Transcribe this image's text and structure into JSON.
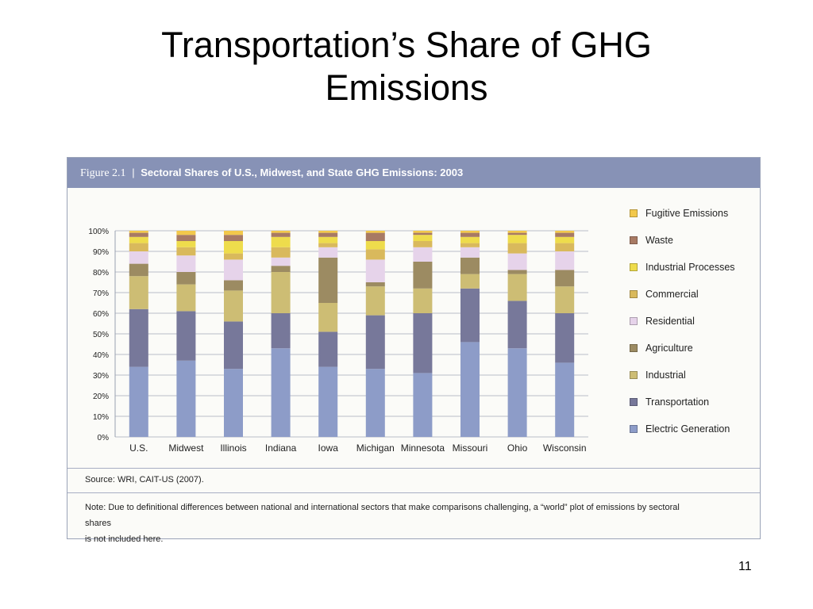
{
  "slide": {
    "title_line1": "Transportation’s Share of GHG",
    "title_line2": "Emissions",
    "page_number": "11"
  },
  "figure": {
    "label": "Figure 2.1",
    "separator": "|",
    "title": "Sectoral Shares of U.S., Midwest, and State GHG Emissions: 2003",
    "source": "Source: WRI, CAIT-US (2007).",
    "note_line1": "Note: Due to definitional differences between national and international sectors that make comparisons challenging, a “world” plot of emissions by sectoral shares",
    "note_line2": "is not included here."
  },
  "chart_data": {
    "type": "bar",
    "stacked": true,
    "title": "Sectoral Shares of U.S., Midwest, and State GHG Emissions: 2003",
    "xlabel": "",
    "ylabel": "",
    "ylim": [
      0,
      100
    ],
    "yticks": [
      "0%",
      "10%",
      "20%",
      "30%",
      "40%",
      "50%",
      "60%",
      "70%",
      "80%",
      "90%",
      "100%"
    ],
    "grid": true,
    "legend_position": "right",
    "categories": [
      "U.S.",
      "Midwest",
      "Illinois",
      "Indiana",
      "Iowa",
      "Michigan",
      "Minnesota",
      "Missouri",
      "Ohio",
      "Wisconsin"
    ],
    "series": [
      {
        "name": "Electric Generation",
        "color": "#8d9cc8",
        "values": [
          34,
          37,
          33,
          43,
          34,
          33,
          31,
          46,
          43,
          36
        ]
      },
      {
        "name": "Transportation",
        "color": "#77789a",
        "values": [
          28,
          24,
          23,
          17,
          17,
          26,
          29,
          26,
          23,
          24
        ]
      },
      {
        "name": "Industrial",
        "color": "#cdbd74",
        "values": [
          16,
          13,
          15,
          20,
          14,
          14,
          12,
          7,
          13,
          13
        ]
      },
      {
        "name": "Agriculture",
        "color": "#9c8b62",
        "values": [
          6,
          6,
          5,
          3,
          22,
          2,
          13,
          8,
          2,
          8
        ]
      },
      {
        "name": "Residential",
        "color": "#e6d3ea",
        "values": [
          6,
          8,
          10,
          4,
          5,
          11,
          7,
          5,
          8,
          9
        ]
      },
      {
        "name": "Commercial",
        "color": "#d9b95c",
        "values": [
          4,
          4,
          3,
          5,
          2,
          5,
          3,
          2,
          5,
          4
        ]
      },
      {
        "name": "Industrial Processes",
        "color": "#eedc4c",
        "values": [
          3,
          3,
          6,
          5,
          3,
          4,
          3,
          3,
          4,
          3
        ]
      },
      {
        "name": "Waste",
        "color": "#a87a64",
        "values": [
          2,
          3,
          3,
          2,
          2,
          4,
          1,
          2,
          1,
          2
        ]
      },
      {
        "name": "Fugitive Emissions",
        "color": "#f2c84b",
        "values": [
          1,
          2,
          2,
          1,
          1,
          1,
          1,
          1,
          1,
          1
        ]
      }
    ]
  }
}
